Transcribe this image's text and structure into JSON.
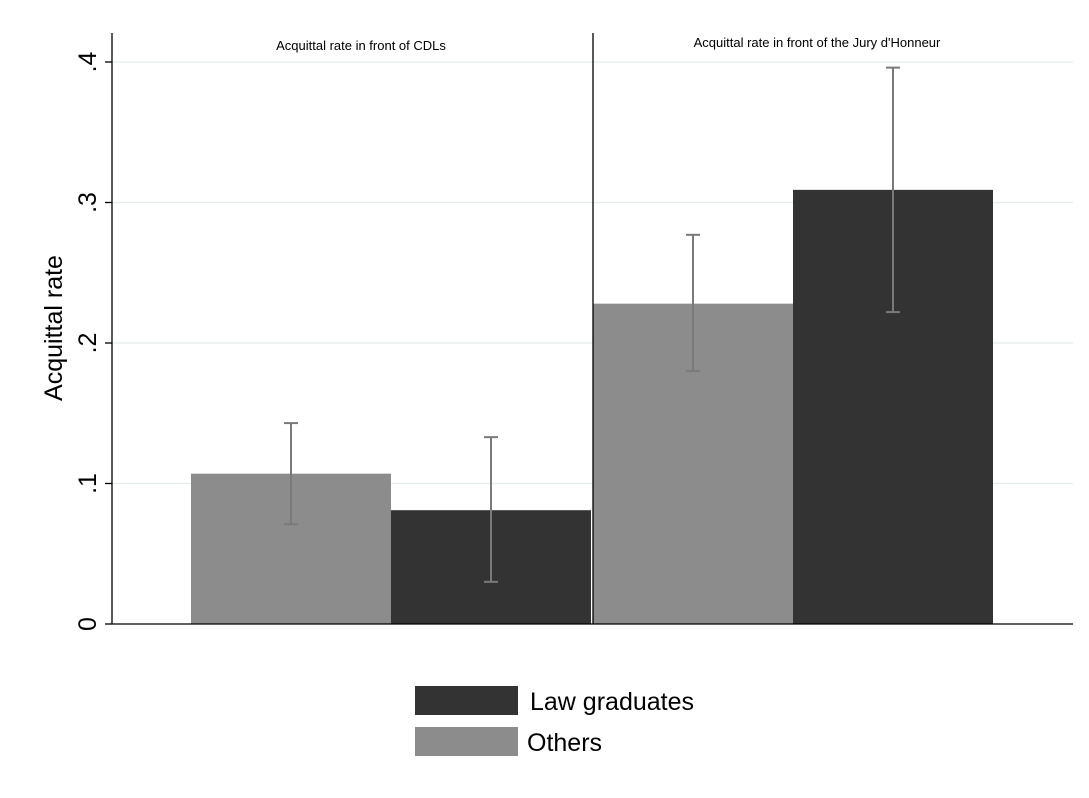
{
  "chart_data": {
    "type": "bar",
    "panels": [
      {
        "title": "Acquittal rate in front of CDLs"
      },
      {
        "title": "Acquittal rate in front of the Jury d'Honneur"
      }
    ],
    "series": [
      {
        "name": "Others",
        "color": "#8c8c8c",
        "values": [
          0.107,
          0.228
        ],
        "ci_low": [
          0.071,
          0.18
        ],
        "ci_high": [
          0.143,
          0.277
        ]
      },
      {
        "name": "Law graduates",
        "color": "#333333",
        "values": [
          0.081,
          0.309
        ],
        "ci_low": [
          0.03,
          0.222
        ],
        "ci_high": [
          0.133,
          0.396
        ]
      }
    ],
    "ylabel": "Acquittal rate",
    "xlabel": "",
    "ylim": [
      0,
      0.42
    ],
    "yticks": [
      0,
      0.1,
      0.2,
      0.3,
      0.4
    ],
    "ytick_labels": [
      "0",
      ".1",
      ".2",
      ".3",
      ".4"
    ],
    "grid": true,
    "error_bar_color": "#7a7a7a",
    "legend": {
      "placement": "bottom",
      "items": [
        {
          "label": "Law graduates",
          "color": "#333333"
        },
        {
          "label": "Others",
          "color": "#8c8c8c"
        }
      ]
    }
  }
}
